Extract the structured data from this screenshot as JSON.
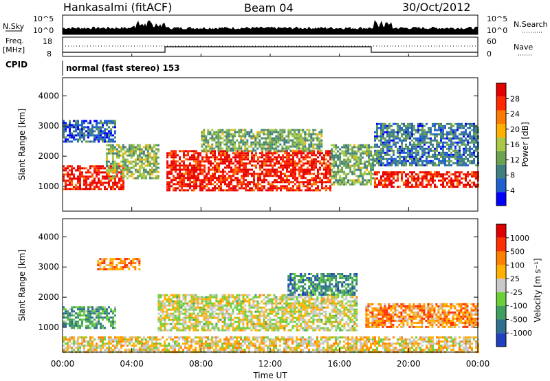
{
  "header": {
    "station": "Hankasalmi (fitACF)",
    "beam": "Beam 04",
    "date": "30/Oct/2012",
    "cpid_label": "CPID",
    "cpid_value": "normal (fast stereo) 153"
  },
  "strips": {
    "nsky_label": "N.Sky",
    "nsky_ticks": [
      "10^5",
      "10^0"
    ],
    "nsearch_label": "N.Search",
    "nsearch_ticks": [
      "10^5",
      "10^0"
    ],
    "freq_label_1": "Freq.",
    "freq_label_2": "[MHz]",
    "freq_ticks": [
      "18",
      "8"
    ],
    "nave_label": "Nave",
    "nave_ticks": [
      "60",
      "0"
    ]
  },
  "chart_data": [
    {
      "type": "heatmap",
      "name": "power",
      "ylabel": "Slant Range [km]",
      "ylim": [
        180,
        4600
      ],
      "yticks": [
        "1000",
        "2000",
        "3000",
        "4000"
      ],
      "colorbar_label": "Power [dB]",
      "colorbar_ticks": [
        "28",
        "24",
        "20",
        "16",
        "12",
        "8",
        "4"
      ],
      "colors": [
        "#0000ff",
        "#1f5fd0",
        "#3f7f7f",
        "#6aa24f",
        "#a8c846",
        "#ffb000",
        "#ff7a00",
        "#ff2a00",
        "#e60000"
      ],
      "regions": [
        {
          "t0": 0.0,
          "t1": 3.5,
          "r0": 900,
          "r1": 1700,
          "level": 0.92
        },
        {
          "t0": 2.5,
          "t1": 5.5,
          "r0": 1300,
          "r1": 2400,
          "level": 0.45
        },
        {
          "t0": 0.0,
          "t1": 3.0,
          "r0": 2500,
          "r1": 3200,
          "level": 0.2
        },
        {
          "t0": 6.0,
          "t1": 15.5,
          "r0": 900,
          "r1": 2200,
          "level": 0.9
        },
        {
          "t0": 15.5,
          "t1": 18.0,
          "r0": 1100,
          "r1": 2400,
          "level": 0.4
        },
        {
          "t0": 18.0,
          "t1": 24.0,
          "r0": 1000,
          "r1": 1500,
          "level": 0.9
        },
        {
          "t0": 18.0,
          "t1": 24.0,
          "r0": 1700,
          "r1": 3100,
          "level": 0.25
        },
        {
          "t0": 8.0,
          "t1": 15.0,
          "r0": 2200,
          "r1": 2900,
          "level": 0.4
        }
      ]
    },
    {
      "type": "heatmap",
      "name": "velocity",
      "ylabel": "Slant Range [km]",
      "ylim": [
        180,
        4600
      ],
      "yticks": [
        "1000",
        "2000",
        "3000",
        "4000"
      ],
      "colorbar_label": "Velocity [m s⁻¹]",
      "colorbar_ticks": [
        "1000",
        "500",
        "100",
        "25",
        "-25",
        "-100",
        "-500",
        "-1000"
      ],
      "colors": [
        "#2040c0",
        "#2f6f8f",
        "#3f9f5f",
        "#6ccf3a",
        "#c8c8c8",
        "#ffb000",
        "#ff8000",
        "#ff3000",
        "#e00000"
      ],
      "regions": [
        {
          "t0": 0.0,
          "t1": 3.0,
          "r0": 1000,
          "r1": 1700,
          "level": 0.3
        },
        {
          "t0": 5.5,
          "t1": 17.0,
          "r0": 900,
          "r1": 2100,
          "level": 0.5
        },
        {
          "t0": 17.5,
          "t1": 24.0,
          "r0": 1000,
          "r1": 1800,
          "level": 0.68
        },
        {
          "t0": 2.0,
          "t1": 4.5,
          "r0": 2900,
          "r1": 3300,
          "level": 0.68
        },
        {
          "t0": 13.0,
          "t1": 17.0,
          "r0": 2100,
          "r1": 2800,
          "level": 0.25
        },
        {
          "t0": 0.0,
          "t1": 24.0,
          "r0": 200,
          "r1": 700,
          "level": 0.55
        }
      ]
    }
  ],
  "time_axis": {
    "ticks": [
      "00:00",
      "04:00",
      "08:00",
      "12:00",
      "16:00",
      "20:00",
      "00:00"
    ],
    "xlabel": "Time UT"
  }
}
